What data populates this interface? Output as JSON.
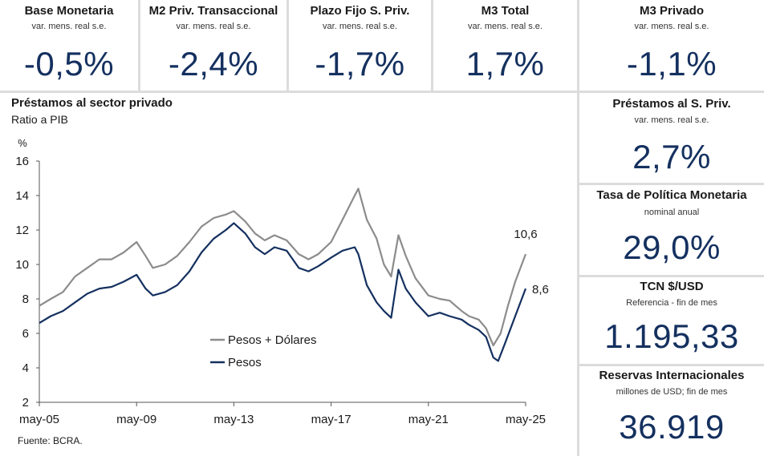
{
  "top_cards": [
    {
      "title": "Base Monetaria",
      "sub": "var. mens. real s.e.",
      "value": "-0,5%"
    },
    {
      "title": "M2 Priv. Transaccional",
      "sub": "var. mens. real s.e.",
      "value": "-2,4%"
    },
    {
      "title": "Plazo Fijo S. Priv.",
      "sub": "var. mens. real s.e.",
      "value": "-1,7%"
    },
    {
      "title": "M3 Total",
      "sub": "var. mens. real s.e.",
      "value": "1,7%"
    },
    {
      "title": "M3 Privado",
      "sub": "var. mens. real s.e.",
      "value": "-1,1%"
    }
  ],
  "side_cards": [
    {
      "title": "Préstamos al S. Priv.",
      "sub": "var. mens. real s.e.",
      "value": "2,7%"
    },
    {
      "title": "Tasa de Política Monetaria",
      "sub": "nominal anual",
      "value": "29,0%"
    },
    {
      "title": "TCN $/USD",
      "sub": "Referencia - fin de mes",
      "value": "1.195,33"
    },
    {
      "title": "Reservas Internacionales",
      "sub": "millones de USD; fin de mes",
      "value": "36.919"
    }
  ],
  "chart": {
    "title": "Préstamos al sector privado",
    "subtitle": "Ratio a PIB",
    "source": "Fuente: BCRA."
  },
  "colors": {
    "accent": "#14305f",
    "series_total": "#8c8c8c",
    "series_pesos": "#14305f"
  },
  "chart_data": {
    "type": "line",
    "title": "Préstamos al sector privado",
    "subtitle": "Ratio a PIB",
    "ylabel": "%",
    "xlabel": "",
    "ylim": [
      2,
      16
    ],
    "yticks": [
      2,
      4,
      6,
      8,
      10,
      12,
      14,
      16
    ],
    "x_range": [
      2005.33,
      2025.33
    ],
    "xticks": [
      {
        "x": 2005.33,
        "label": "may-05"
      },
      {
        "x": 2009.33,
        "label": "may-09"
      },
      {
        "x": 2013.33,
        "label": "may-13"
      },
      {
        "x": 2017.33,
        "label": "may-17"
      },
      {
        "x": 2021.33,
        "label": "may-21"
      },
      {
        "x": 2025.33,
        "label": "may-25"
      }
    ],
    "legend_position": "bottom-center",
    "series": [
      {
        "name": "Pesos + Dólares",
        "color": "#8c8c8c",
        "end_label": "10,6",
        "points": [
          [
            2005.33,
            7.6
          ],
          [
            2005.8,
            8.0
          ],
          [
            2006.3,
            8.4
          ],
          [
            2006.8,
            9.3
          ],
          [
            2007.3,
            9.8
          ],
          [
            2007.8,
            10.3
          ],
          [
            2008.3,
            10.3
          ],
          [
            2008.8,
            10.7
          ],
          [
            2009.33,
            11.3
          ],
          [
            2009.7,
            10.5
          ],
          [
            2010.0,
            9.8
          ],
          [
            2010.5,
            10.0
          ],
          [
            2011.0,
            10.5
          ],
          [
            2011.5,
            11.3
          ],
          [
            2012.0,
            12.2
          ],
          [
            2012.5,
            12.7
          ],
          [
            2013.0,
            12.9
          ],
          [
            2013.33,
            13.1
          ],
          [
            2013.8,
            12.5
          ],
          [
            2014.2,
            11.8
          ],
          [
            2014.6,
            11.4
          ],
          [
            2015.0,
            11.7
          ],
          [
            2015.5,
            11.4
          ],
          [
            2016.0,
            10.6
          ],
          [
            2016.4,
            10.3
          ],
          [
            2016.8,
            10.6
          ],
          [
            2017.33,
            11.3
          ],
          [
            2017.8,
            12.6
          ],
          [
            2018.3,
            14.0
          ],
          [
            2018.45,
            14.4
          ],
          [
            2018.8,
            12.6
          ],
          [
            2019.2,
            11.5
          ],
          [
            2019.5,
            10.0
          ],
          [
            2019.8,
            9.3
          ],
          [
            2020.1,
            11.7
          ],
          [
            2020.4,
            10.5
          ],
          [
            2020.8,
            9.2
          ],
          [
            2021.33,
            8.2
          ],
          [
            2021.8,
            8.0
          ],
          [
            2022.2,
            7.9
          ],
          [
            2022.7,
            7.3
          ],
          [
            2023.0,
            7.0
          ],
          [
            2023.4,
            6.8
          ],
          [
            2023.7,
            6.3
          ],
          [
            2024.0,
            5.3
          ],
          [
            2024.3,
            6.0
          ],
          [
            2024.6,
            7.6
          ],
          [
            2024.9,
            9.0
          ],
          [
            2025.33,
            10.6
          ]
        ]
      },
      {
        "name": "Pesos",
        "color": "#14305f",
        "end_label": "8,6",
        "points": [
          [
            2005.33,
            6.6
          ],
          [
            2005.8,
            7.0
          ],
          [
            2006.3,
            7.3
          ],
          [
            2006.8,
            7.8
          ],
          [
            2007.3,
            8.3
          ],
          [
            2007.8,
            8.6
          ],
          [
            2008.3,
            8.7
          ],
          [
            2008.8,
            9.0
          ],
          [
            2009.33,
            9.4
          ],
          [
            2009.7,
            8.6
          ],
          [
            2010.0,
            8.2
          ],
          [
            2010.5,
            8.4
          ],
          [
            2011.0,
            8.8
          ],
          [
            2011.5,
            9.6
          ],
          [
            2012.0,
            10.7
          ],
          [
            2012.5,
            11.5
          ],
          [
            2013.0,
            12.0
          ],
          [
            2013.33,
            12.4
          ],
          [
            2013.8,
            11.8
          ],
          [
            2014.2,
            11.0
          ],
          [
            2014.6,
            10.6
          ],
          [
            2015.0,
            11.0
          ],
          [
            2015.5,
            10.8
          ],
          [
            2016.0,
            9.8
          ],
          [
            2016.4,
            9.6
          ],
          [
            2016.8,
            9.9
          ],
          [
            2017.33,
            10.4
          ],
          [
            2017.8,
            10.8
          ],
          [
            2018.3,
            11.0
          ],
          [
            2018.45,
            10.6
          ],
          [
            2018.8,
            8.8
          ],
          [
            2019.2,
            7.8
          ],
          [
            2019.5,
            7.3
          ],
          [
            2019.8,
            6.9
          ],
          [
            2020.1,
            9.7
          ],
          [
            2020.4,
            8.6
          ],
          [
            2020.8,
            7.8
          ],
          [
            2021.33,
            7.0
          ],
          [
            2021.8,
            7.2
          ],
          [
            2022.2,
            7.0
          ],
          [
            2022.7,
            6.8
          ],
          [
            2023.0,
            6.5
          ],
          [
            2023.4,
            6.2
          ],
          [
            2023.7,
            5.8
          ],
          [
            2024.0,
            4.6
          ],
          [
            2024.2,
            4.4
          ],
          [
            2024.5,
            5.5
          ],
          [
            2024.9,
            7.0
          ],
          [
            2025.33,
            8.6
          ]
        ]
      }
    ]
  }
}
